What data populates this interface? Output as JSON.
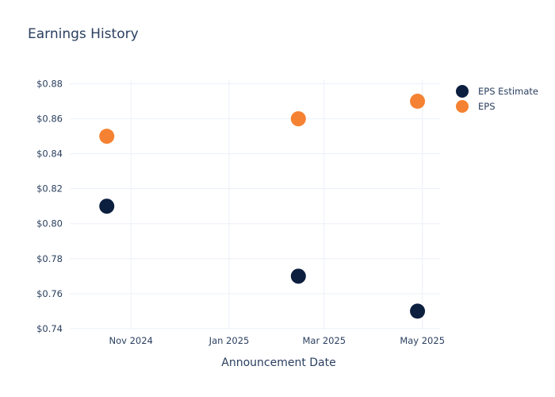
{
  "chart_data": {
    "type": "scatter",
    "title": "Earnings History",
    "xlabel": "Announcement Date",
    "ylabel": "",
    "x_ticks": [
      {
        "label": "Nov 2024",
        "date": "2024-11-01"
      },
      {
        "label": "Jan 2025",
        "date": "2025-01-01"
      },
      {
        "label": "Mar 2025",
        "date": "2025-03-01"
      },
      {
        "label": "May 2025",
        "date": "2025-05-01"
      }
    ],
    "y_ticks": [
      {
        "label": "$0.74",
        "value": 0.74
      },
      {
        "label": "$0.76",
        "value": 0.76
      },
      {
        "label": "$0.78",
        "value": 0.78
      },
      {
        "label": "$0.80",
        "value": 0.8
      },
      {
        "label": "$0.82",
        "value": 0.82
      },
      {
        "label": "$0.84",
        "value": 0.84
      },
      {
        "label": "$0.86",
        "value": 0.86
      },
      {
        "label": "$0.88",
        "value": 0.88
      }
    ],
    "xlim": [
      "2024-09-24",
      "2025-05-12"
    ],
    "ylim": [
      0.7395,
      0.8825
    ],
    "grid": true,
    "legend_position": "top-right",
    "series": [
      {
        "name": "EPS Estimate",
        "color": "#0c1f3f",
        "points": [
          {
            "x": "2024-10-17",
            "y": 0.81
          },
          {
            "x": "2025-02-13",
            "y": 0.77
          },
          {
            "x": "2025-04-28",
            "y": 0.75
          }
        ]
      },
      {
        "name": "EPS",
        "color": "#f58232",
        "points": [
          {
            "x": "2024-10-17",
            "y": 0.85
          },
          {
            "x": "2025-02-13",
            "y": 0.86
          },
          {
            "x": "2025-04-28",
            "y": 0.87
          }
        ]
      }
    ]
  }
}
